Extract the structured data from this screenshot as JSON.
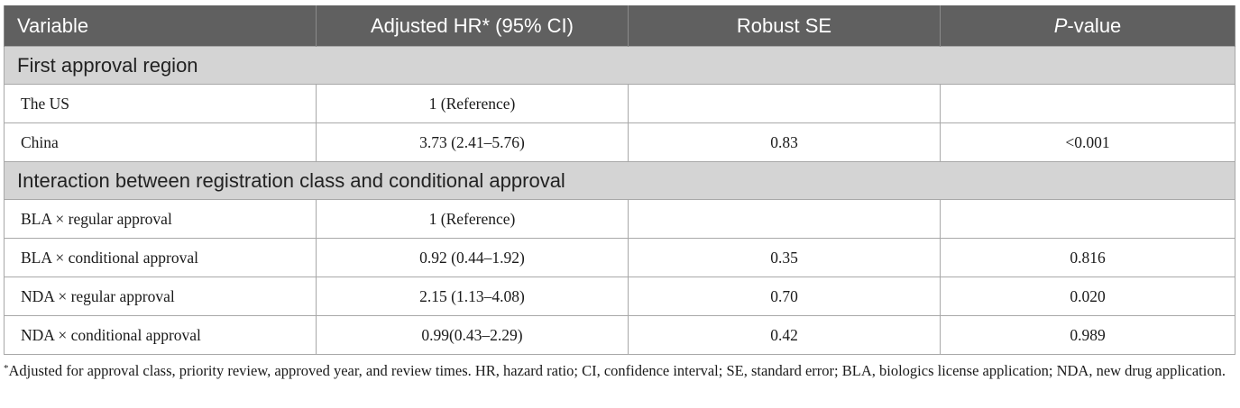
{
  "table": {
    "headers": {
      "variable": "Variable",
      "hr": "Adjusted HR* (95% CI)",
      "se": "Robust SE",
      "p_italic": "P",
      "p_rest": "-value"
    },
    "sections": [
      {
        "title": "First approval region",
        "rows": [
          {
            "variable": "The US",
            "hr": "1 (Reference)",
            "se": "",
            "p": ""
          },
          {
            "variable": "China",
            "hr": "3.73 (2.41–5.76)",
            "se": "0.83",
            "p": "<0.001"
          }
        ]
      },
      {
        "title": "Interaction between registration class and conditional approval",
        "rows": [
          {
            "variable": "BLA × regular approval",
            "hr": "1 (Reference)",
            "se": "",
            "p": ""
          },
          {
            "variable": "BLA × conditional approval",
            "hr": "0.92 (0.44–1.92)",
            "se": "0.35",
            "p": "0.816"
          },
          {
            "variable": "NDA × regular approval",
            "hr": "2.15 (1.13–4.08)",
            "se": "0.70",
            "p": "0.020"
          },
          {
            "variable": "NDA × conditional approval",
            "hr": "0.99(0.43–2.29)",
            "se": "0.42",
            "p": "0.989"
          }
        ]
      }
    ]
  },
  "footnote": {
    "marker": "*",
    "text": "Adjusted for approval class, priority review, approved year, and review times. HR, hazard ratio; CI, confidence interval; SE, standard error; BLA, biologics license application; NDA, new drug application."
  }
}
